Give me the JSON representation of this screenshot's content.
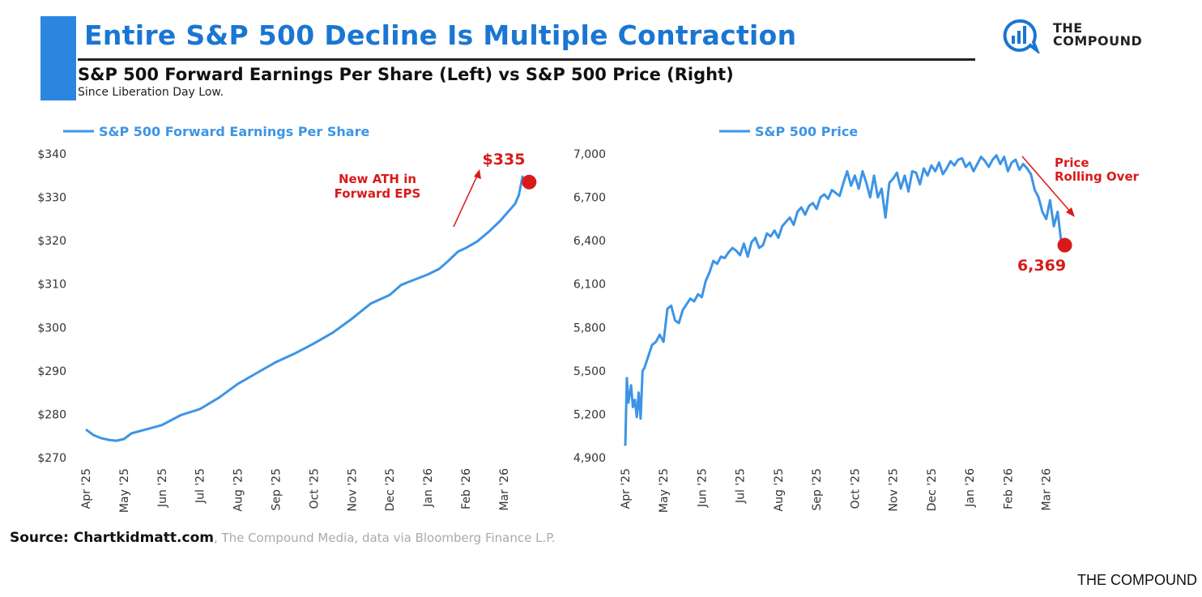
{
  "header": {
    "title": "Entire S&P 500 Decline Is Multiple Contraction",
    "subtitle": "S&P 500 Forward Earnings Per Share (Left) vs S&P 500 Price (Right)",
    "note": "Since Liberation Day Low."
  },
  "logo": {
    "line1": "THE",
    "line2": "COMPOUND",
    "icon": "chart-bubble-icon"
  },
  "source": {
    "bold": "Source: Chartkidmatt.com",
    "light": ", The Compound Media, data via Bloomberg Finance L.P."
  },
  "footer": {
    "brand": "THE COMPOUND"
  },
  "colors": {
    "line": "#3d94e6",
    "title": "#1a76d2",
    "annotation": "#d91a1a"
  },
  "chart_data": [
    {
      "type": "line",
      "title": "",
      "legend": "S&P 500 Forward Earnings Per Share",
      "legend_position": "top-left",
      "ylim": [
        270,
        340
      ],
      "y_ticks": [
        "$270",
        "$280",
        "$290",
        "$300",
        "$310",
        "$320",
        "$330",
        "$340"
      ],
      "y_tick_values": [
        270,
        280,
        290,
        300,
        310,
        320,
        330,
        340
      ],
      "x_ticks": [
        "Apr '25",
        "May '25",
        "Jun '25",
        "Jul '25",
        "Aug '25",
        "Sep '25",
        "Oct '25",
        "Nov '25",
        "Dec '25",
        "Jan '26",
        "Feb '26",
        "Mar '26"
      ],
      "x_tick_index": [
        0,
        1,
        2,
        3,
        4,
        5,
        6,
        7,
        8,
        9,
        10,
        11
      ],
      "x_end_index": 11.6,
      "series": [
        {
          "x": [
            0,
            0.2,
            0.4,
            0.6,
            0.8,
            1.0,
            1.2,
            1.5,
            2.0,
            2.5,
            3.0,
            3.5,
            4.0,
            4.5,
            5.0,
            5.5,
            6.0,
            6.5,
            7.0,
            7.5,
            8.0,
            8.3,
            8.5,
            9.0,
            9.3,
            9.5,
            9.8,
            10.0,
            10.3,
            10.6,
            10.9,
            11.1,
            11.3,
            11.4,
            11.5
          ],
          "values": [
            276.5,
            275.2,
            274.5,
            274.1,
            273.9,
            274.3,
            275.6,
            276.3,
            277.5,
            279.8,
            281.2,
            283.8,
            287.0,
            289.5,
            292.0,
            294.0,
            296.3,
            298.8,
            302.0,
            305.5,
            307.5,
            309.8,
            310.5,
            312.2,
            313.5,
            315.0,
            317.5,
            318.3,
            319.8,
            322.0,
            324.5,
            326.5,
            328.5,
            330.5,
            335.0
          ]
        }
      ],
      "annotations": {
        "end_value_label": "$335",
        "end_value": 335,
        "note": "New ATH in\nForward EPS"
      }
    },
    {
      "type": "line",
      "title": "",
      "legend": "S&P 500 Price",
      "legend_position": "top-left",
      "ylim": [
        4900,
        7000
      ],
      "y_ticks": [
        "4,900",
        "5,200",
        "5,500",
        "5,800",
        "6,100",
        "6,400",
        "6,700",
        "7,000"
      ],
      "y_tick_values": [
        4900,
        5200,
        5500,
        5800,
        6100,
        6400,
        6700,
        7000
      ],
      "x_ticks": [
        "Apr '25",
        "May '25",
        "Jun '25",
        "Jul '25",
        "Aug '25",
        "Sep '25",
        "Oct '25",
        "Nov '25",
        "Dec '25",
        "Jan '26",
        "Feb '26",
        "Mar '26"
      ],
      "x_tick_index": [
        0,
        1,
        2,
        3,
        4,
        5,
        6,
        7,
        8,
        9,
        10,
        11
      ],
      "x_end_index": 11.6,
      "series": [
        {
          "x": [
            0,
            0.04,
            0.08,
            0.15,
            0.2,
            0.25,
            0.3,
            0.35,
            0.4,
            0.45,
            0.5,
            0.6,
            0.7,
            0.8,
            0.9,
            1.0,
            1.1,
            1.2,
            1.3,
            1.4,
            1.5,
            1.6,
            1.7,
            1.8,
            1.9,
            2.0,
            2.1,
            2.2,
            2.3,
            2.4,
            2.5,
            2.6,
            2.7,
            2.8,
            2.9,
            3.0,
            3.1,
            3.2,
            3.3,
            3.4,
            3.5,
            3.6,
            3.7,
            3.8,
            3.9,
            4.0,
            4.1,
            4.2,
            4.3,
            4.4,
            4.5,
            4.6,
            4.7,
            4.8,
            4.9,
            5.0,
            5.1,
            5.2,
            5.3,
            5.4,
            5.5,
            5.6,
            5.7,
            5.8,
            5.9,
            6.0,
            6.1,
            6.2,
            6.3,
            6.4,
            6.5,
            6.6,
            6.7,
            6.8,
            6.9,
            7.0,
            7.1,
            7.2,
            7.3,
            7.4,
            7.5,
            7.6,
            7.7,
            7.8,
            7.9,
            8.0,
            8.1,
            8.2,
            8.3,
            8.4,
            8.5,
            8.6,
            8.7,
            8.8,
            8.9,
            9.0,
            9.1,
            9.2,
            9.3,
            9.4,
            9.5,
            9.6,
            9.7,
            9.8,
            9.9,
            10.0,
            10.1,
            10.2,
            10.3,
            10.4,
            10.5,
            10.6,
            10.7,
            10.8,
            10.9,
            11.0,
            11.1,
            11.2,
            11.3,
            11.4
          ],
          "values": [
            4982,
            5450,
            5280,
            5400,
            5250,
            5300,
            5180,
            5350,
            5170,
            5500,
            5520,
            5600,
            5680,
            5700,
            5750,
            5700,
            5930,
            5950,
            5850,
            5830,
            5920,
            5960,
            6000,
            5980,
            6030,
            6010,
            6120,
            6180,
            6260,
            6240,
            6290,
            6280,
            6320,
            6350,
            6330,
            6300,
            6380,
            6290,
            6390,
            6420,
            6350,
            6370,
            6450,
            6430,
            6470,
            6420,
            6500,
            6530,
            6560,
            6510,
            6600,
            6630,
            6580,
            6640,
            6660,
            6620,
            6700,
            6720,
            6690,
            6750,
            6730,
            6710,
            6800,
            6880,
            6780,
            6850,
            6760,
            6880,
            6800,
            6700,
            6850,
            6700,
            6760,
            6560,
            6800,
            6830,
            6870,
            6760,
            6850,
            6740,
            6880,
            6870,
            6790,
            6900,
            6850,
            6920,
            6880,
            6940,
            6860,
            6900,
            6950,
            6920,
            6960,
            6970,
            6910,
            6940,
            6880,
            6930,
            6980,
            6950,
            6910,
            6960,
            6990,
            6930,
            6980,
            6880,
            6940,
            6960,
            6890,
            6930,
            6900,
            6860,
            6750,
            6700,
            6600,
            6550,
            6680,
            6500,
            6600,
            6369
          ]
        }
      ],
      "annotations": {
        "end_value_label": "6,369",
        "end_value": 6369,
        "note": "Price\nRolling Over"
      }
    }
  ]
}
